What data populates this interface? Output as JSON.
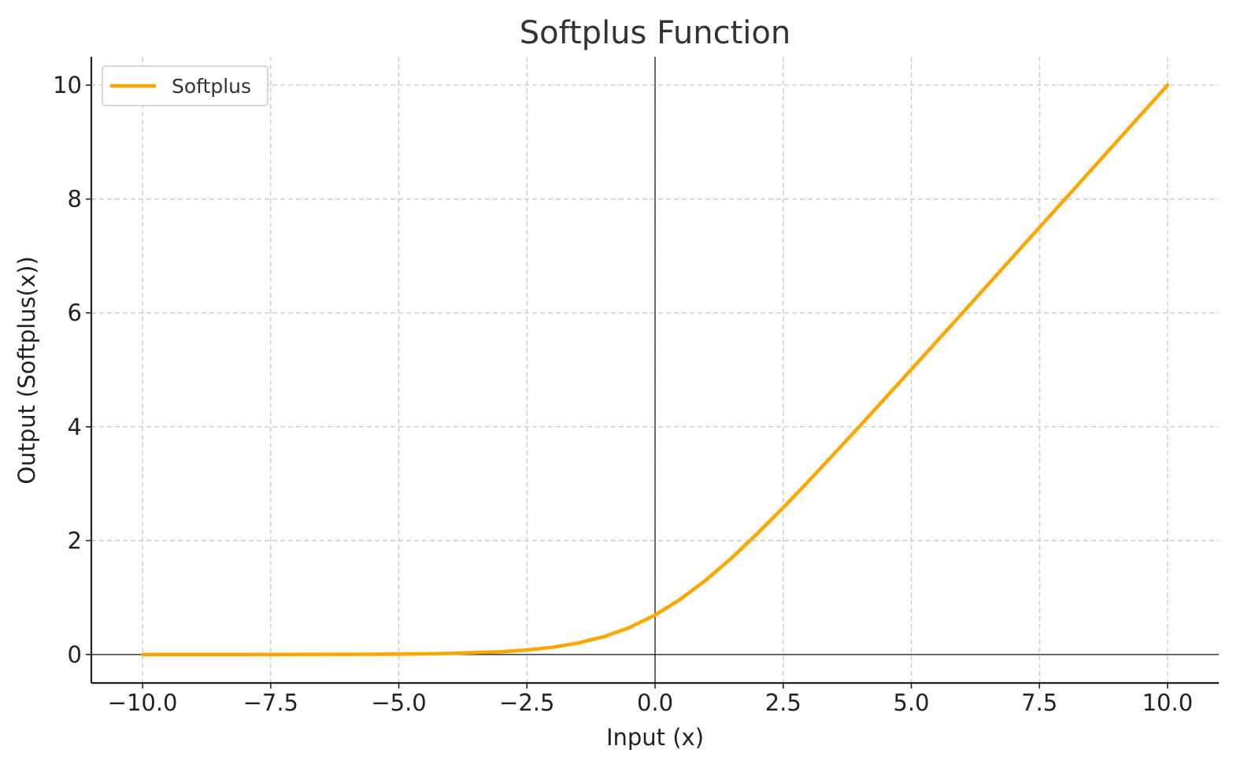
{
  "chart_data": {
    "type": "line",
    "title": "Softplus Function",
    "xlabel": "Input (x)",
    "ylabel": "Output (Softplus(x))",
    "xlim": [
      -11,
      11
    ],
    "ylim": [
      -0.5,
      10.5
    ],
    "x_ticks": [
      -10,
      -7.5,
      -5,
      -2.5,
      0,
      2.5,
      5,
      7.5,
      10
    ],
    "x_tick_labels": [
      "−10.0",
      "−7.5",
      "−5.0",
      "−2.5",
      "0.0",
      "2.5",
      "5.0",
      "7.5",
      "10.0"
    ],
    "y_ticks": [
      0,
      2,
      4,
      6,
      8,
      10
    ],
    "y_tick_labels": [
      "0",
      "2",
      "4",
      "6",
      "8",
      "10"
    ],
    "grid": true,
    "reference_lines": {
      "x": 0,
      "y": 0
    },
    "legend": {
      "position": "top-left",
      "entries": [
        "Softplus"
      ]
    },
    "series": [
      {
        "name": "Softplus",
        "color": "#FFA500",
        "x": [
          -10,
          -9,
          -8,
          -7,
          -6,
          -5,
          -4,
          -3,
          -2.5,
          -2,
          -1.5,
          -1,
          -0.5,
          0,
          0.5,
          1,
          1.5,
          2,
          2.5,
          3,
          4,
          5,
          6,
          7,
          8,
          9,
          10
        ],
        "y": [
          5e-05,
          0.00012,
          0.00034,
          0.00091,
          0.0025,
          0.0067,
          0.018,
          0.049,
          0.079,
          0.127,
          0.201,
          0.313,
          0.474,
          0.693,
          0.974,
          1.313,
          1.701,
          2.127,
          2.579,
          3.049,
          4.018,
          5.007,
          6.002,
          7.001,
          8.0003,
          9.0001,
          10.00005
        ]
      }
    ]
  }
}
